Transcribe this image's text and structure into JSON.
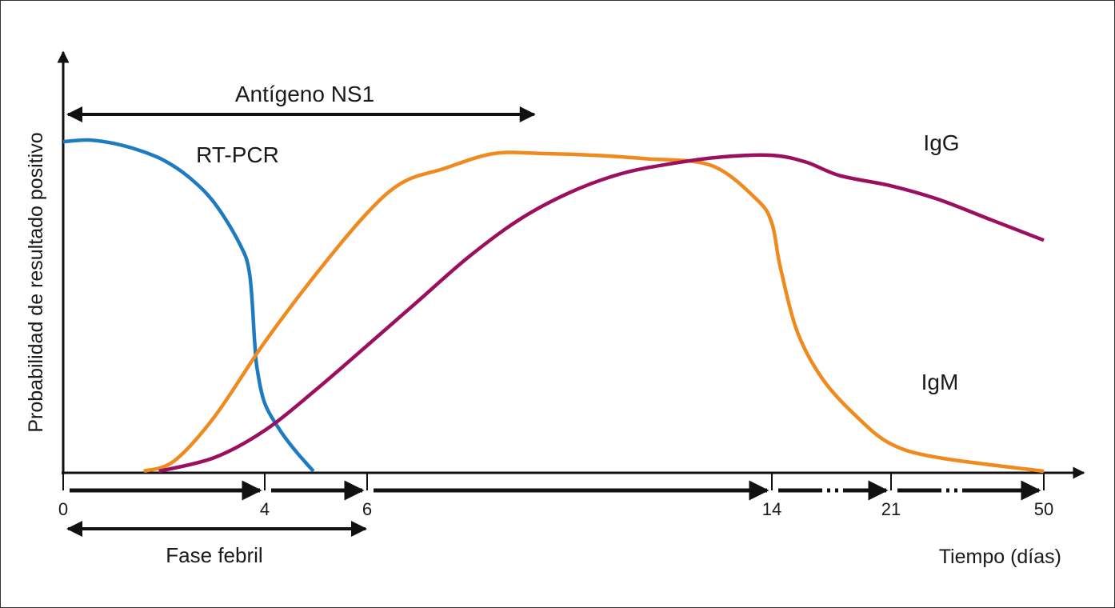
{
  "chart_data": {
    "type": "line",
    "ylabel": "Probabilidad de resultado positivo",
    "xlabel": "Tiempo (días)",
    "ylim": [
      0,
      1
    ],
    "x_ticks": [
      "0",
      "4",
      "6",
      "14",
      "21",
      "50"
    ],
    "grid": false,
    "series": [
      {
        "name": "RT-PCR",
        "color": "#1f7bbf",
        "points": [
          [
            0,
            0.97
          ],
          [
            0.5,
            0.975
          ],
          [
            1,
            0.965
          ],
          [
            1.5,
            0.945
          ],
          [
            2,
            0.915
          ],
          [
            2.5,
            0.865
          ],
          [
            3,
            0.79
          ],
          [
            3.5,
            0.67
          ],
          [
            3.7,
            0.58
          ],
          [
            3.8,
            0.38
          ],
          [
            3.85,
            0.3
          ],
          [
            4,
            0.2
          ],
          [
            4.3,
            0.12
          ],
          [
            4.6,
            0.06
          ],
          [
            4.95,
            0
          ]
        ]
      },
      {
        "name": "IgM",
        "color": "#ee8a1e",
        "points": [
          [
            1.6,
            0
          ],
          [
            2.2,
            0.03
          ],
          [
            3,
            0.16
          ],
          [
            4,
            0.38
          ],
          [
            5,
            0.58
          ],
          [
            6,
            0.76
          ],
          [
            6.7,
            0.85
          ],
          [
            7.5,
            0.89
          ],
          [
            8.5,
            0.935
          ],
          [
            9.5,
            0.935
          ],
          [
            10.5,
            0.93
          ],
          [
            11.5,
            0.92
          ],
          [
            12.8,
            0.9
          ],
          [
            13.7,
            0.8
          ],
          [
            14,
            0.73
          ],
          [
            14.5,
            0.6
          ],
          [
            15.5,
            0.41
          ],
          [
            17,
            0.27
          ],
          [
            19,
            0.16
          ],
          [
            21,
            0.08
          ],
          [
            30,
            0.04
          ],
          [
            50,
            0
          ]
        ]
      },
      {
        "name": "IgG",
        "color": "#9b0f5f",
        "points": [
          [
            1.9,
            0
          ],
          [
            3,
            0.04
          ],
          [
            4,
            0.12
          ],
          [
            5,
            0.24
          ],
          [
            6,
            0.37
          ],
          [
            7,
            0.5
          ],
          [
            8,
            0.63
          ],
          [
            9,
            0.74
          ],
          [
            10,
            0.82
          ],
          [
            11,
            0.875
          ],
          [
            12,
            0.905
          ],
          [
            13,
            0.925
          ],
          [
            14,
            0.93
          ],
          [
            16,
            0.91
          ],
          [
            18,
            0.87
          ],
          [
            21,
            0.84
          ],
          [
            30,
            0.8
          ],
          [
            40,
            0.74
          ],
          [
            50,
            0.68
          ]
        ]
      }
    ],
    "annotations": {
      "antigen": {
        "label": "Antígeno NS1",
        "from": 0,
        "to": 9.3
      },
      "febrile": {
        "label": "Fase febril",
        "from": 0,
        "to": 6
      },
      "periods": [
        {
          "from": 0,
          "to": 4,
          "style": "solid"
        },
        {
          "from": 4,
          "to": 6,
          "style": "solid"
        },
        {
          "from": 6,
          "to": 14,
          "style": "solid"
        },
        {
          "from": 14,
          "to": 21,
          "style": "dash-dot"
        },
        {
          "from": 21,
          "to": 50,
          "style": "dash-dot"
        }
      ]
    }
  }
}
